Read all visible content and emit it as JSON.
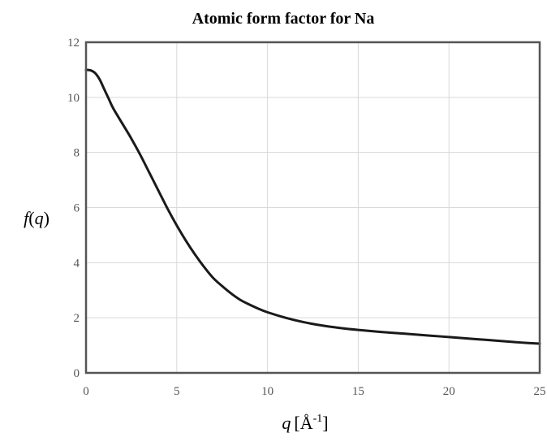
{
  "chart_data": {
    "type": "line",
    "title": "Atomic form factor for Na",
    "xlabel": {
      "var": "q",
      "unit_open": "[Å",
      "unit_sup": "-1",
      "unit_close": "]"
    },
    "ylabel": {
      "var": "f",
      "arg_open": "(",
      "arg": "q",
      "arg_close": ")"
    },
    "xlim": [
      0,
      25
    ],
    "ylim": [
      0,
      12
    ],
    "xticks": [
      0,
      5,
      10,
      15,
      20,
      25
    ],
    "yticks": [
      0,
      2,
      4,
      6,
      8,
      10,
      12
    ],
    "grid": true,
    "line_color": "#1a1a1a",
    "series": [
      {
        "x": [
          0,
          0.25,
          0.5,
          0.75,
          1,
          1.25,
          1.5,
          2,
          2.5,
          3,
          3.5,
          4,
          4.5,
          5,
          5.5,
          6,
          6.5,
          7,
          7.5,
          8,
          8.5,
          9,
          9.5,
          10,
          11,
          12,
          13,
          14,
          15,
          16,
          17,
          18,
          19,
          20,
          21,
          22,
          23,
          24,
          25
        ],
        "y": [
          11.0,
          10.98,
          10.88,
          10.65,
          10.3,
          9.95,
          9.6,
          9.05,
          8.5,
          7.9,
          7.25,
          6.6,
          5.95,
          5.35,
          4.8,
          4.3,
          3.85,
          3.45,
          3.15,
          2.88,
          2.65,
          2.48,
          2.33,
          2.2,
          2.0,
          1.84,
          1.72,
          1.63,
          1.56,
          1.5,
          1.45,
          1.4,
          1.35,
          1.3,
          1.25,
          1.2,
          1.15,
          1.1,
          1.06
        ]
      }
    ]
  }
}
